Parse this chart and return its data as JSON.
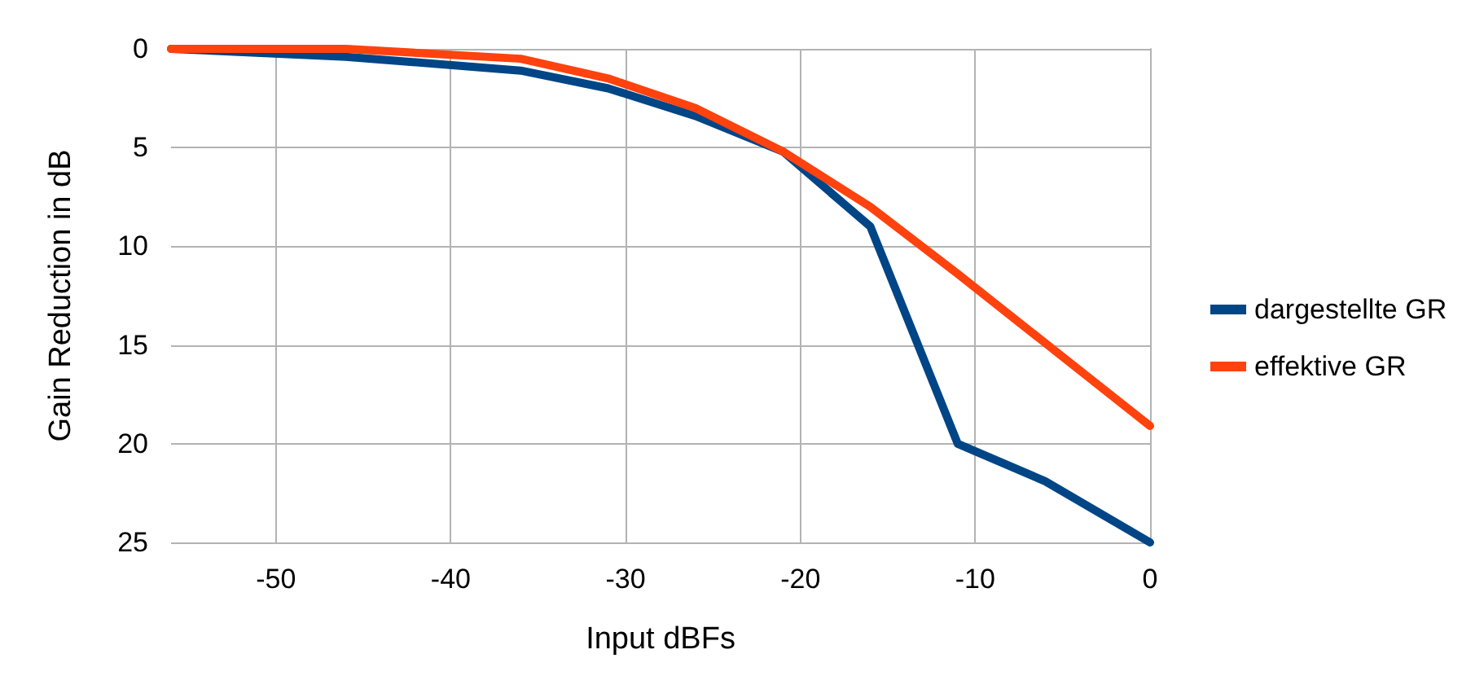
{
  "chart_data": {
    "type": "line",
    "xlabel": "Input dBFs",
    "ylabel": "Gain Reduction in dB",
    "x": [
      -56,
      -46,
      -36,
      -31,
      -26,
      -21,
      -16,
      -11,
      -6,
      0
    ],
    "series": [
      {
        "name": "dargestellte GR",
        "color": "#004586",
        "values": [
          0,
          0.4,
          1.1,
          2.0,
          3.4,
          5.2,
          9.0,
          20.0,
          21.9,
          25
        ]
      },
      {
        "name": "effektive GR",
        "color": "#ff420e",
        "values": [
          0,
          0,
          0.5,
          1.5,
          3.0,
          5.2,
          8.0,
          11.4,
          14.9,
          19.1
        ]
      }
    ],
    "xlim": [
      -56,
      0
    ],
    "xticks": [
      -50,
      -40,
      -30,
      -20,
      -10,
      0
    ],
    "ylim": [
      25,
      0
    ],
    "yticks": [
      0,
      5,
      10,
      15,
      20,
      25
    ],
    "grid": true,
    "legend": "right",
    "marker": "none",
    "line_style": "solid"
  }
}
